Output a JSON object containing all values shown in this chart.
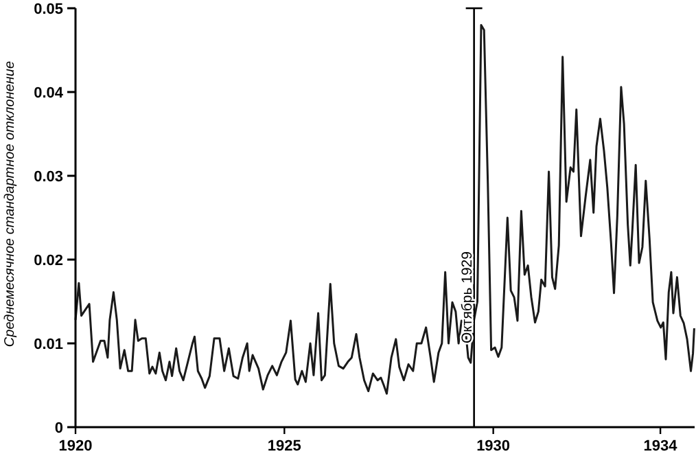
{
  "chart_data": {
    "type": "line",
    "ylabel": "Среднемесячное стандартное отклонение",
    "xlim": [
      1920,
      1934.82
    ],
    "xticks": [
      1920,
      1925,
      1930,
      1934
    ],
    "ylim": [
      0,
      0.05
    ],
    "yticks": [
      0,
      0.01,
      0.02,
      0.03,
      0.04,
      0.05
    ],
    "grid": false,
    "marker": "none",
    "line_style": "solid",
    "ref_lines": [
      {
        "axis": "x",
        "value": 1929.54,
        "label": "Октябрь 1929"
      }
    ],
    "series": [
      {
        "color": "#1a1a1a",
        "x": [
          1920.0,
          1920.08,
          1920.14,
          1920.22,
          1920.33,
          1920.42,
          1920.52,
          1920.6,
          1920.69,
          1920.77,
          1920.82,
          1920.91,
          1920.99,
          1921.07,
          1921.17,
          1921.26,
          1921.35,
          1921.43,
          1921.5,
          1921.59,
          1921.68,
          1921.77,
          1921.84,
          1921.92,
          1922.01,
          1922.08,
          1922.16,
          1922.25,
          1922.31,
          1922.41,
          1922.49,
          1922.58,
          1922.69,
          1922.8,
          1922.85,
          1922.93,
          1923.02,
          1923.1,
          1923.21,
          1923.32,
          1923.45,
          1923.56,
          1923.67,
          1923.78,
          1923.89,
          1924.0,
          1924.11,
          1924.16,
          1924.24,
          1924.38,
          1924.49,
          1924.6,
          1924.71,
          1924.82,
          1924.93,
          1925.04,
          1925.15,
          1925.26,
          1925.32,
          1925.42,
          1925.51,
          1925.62,
          1925.7,
          1925.81,
          1925.89,
          1925.97,
          1926.1,
          1926.19,
          1926.3,
          1926.41,
          1926.52,
          1926.61,
          1926.72,
          1926.8,
          1926.91,
          1927.01,
          1927.12,
          1927.23,
          1927.31,
          1927.38,
          1927.45,
          1927.56,
          1927.67,
          1927.75,
          1927.86,
          1927.97,
          1928.08,
          1928.17,
          1928.28,
          1928.39,
          1928.5,
          1928.58,
          1928.69,
          1928.77,
          1928.85,
          1928.93,
          1929.02,
          1929.1,
          1929.17,
          1929.24,
          1929.32,
          1929.4,
          1929.46,
          1929.54,
          1929.62,
          1929.71,
          1929.78,
          1929.87,
          1929.95,
          1930.04,
          1930.12,
          1930.2,
          1930.34,
          1930.42,
          1930.5,
          1930.58,
          1930.67,
          1930.75,
          1930.83,
          1930.91,
          1931.0,
          1931.08,
          1931.15,
          1931.24,
          1931.33,
          1931.41,
          1931.48,
          1931.57,
          1931.66,
          1931.75,
          1931.85,
          1931.92,
          1931.99,
          1932.1,
          1932.21,
          1932.32,
          1932.4,
          1932.47,
          1932.56,
          1932.65,
          1932.73,
          1932.82,
          1932.89,
          1932.97,
          1933.06,
          1933.13,
          1933.22,
          1933.28,
          1933.33,
          1933.41,
          1933.49,
          1933.57,
          1933.65,
          1933.74,
          1933.82,
          1933.93,
          1934.01,
          1934.07,
          1934.13,
          1934.2,
          1934.26,
          1934.31,
          1934.4,
          1934.48,
          1934.56,
          1934.64,
          1934.73,
          1934.78,
          1934.81
        ],
        "values": [
          0.0128,
          0.0172,
          0.0133,
          0.0139,
          0.0147,
          0.0078,
          0.0092,
          0.0103,
          0.0103,
          0.0083,
          0.0128,
          0.0161,
          0.0128,
          0.007,
          0.0092,
          0.0067,
          0.0067,
          0.0128,
          0.0103,
          0.0106,
          0.0106,
          0.0064,
          0.0072,
          0.0064,
          0.0089,
          0.0067,
          0.0056,
          0.0078,
          0.0061,
          0.0094,
          0.0067,
          0.0056,
          0.0078,
          0.01,
          0.0108,
          0.0067,
          0.0058,
          0.0047,
          0.0061,
          0.0106,
          0.0106,
          0.0067,
          0.0094,
          0.0061,
          0.0058,
          0.0083,
          0.01,
          0.0067,
          0.0086,
          0.007,
          0.0045,
          0.0062,
          0.0073,
          0.0062,
          0.0078,
          0.0089,
          0.0127,
          0.0057,
          0.0051,
          0.0067,
          0.0054,
          0.01,
          0.0062,
          0.0136,
          0.0056,
          0.0062,
          0.0171,
          0.01,
          0.0073,
          0.007,
          0.0078,
          0.0083,
          0.0111,
          0.0083,
          0.0056,
          0.0043,
          0.0064,
          0.0056,
          0.0059,
          0.005,
          0.004,
          0.0083,
          0.0105,
          0.0072,
          0.0056,
          0.0075,
          0.0067,
          0.01,
          0.01,
          0.0119,
          0.0083,
          0.0054,
          0.0089,
          0.01,
          0.0185,
          0.01,
          0.0149,
          0.0138,
          0.01,
          0.0127,
          0.0124,
          0.0083,
          0.0077,
          0.0128,
          0.015,
          0.048,
          0.0474,
          0.0291,
          0.0092,
          0.0095,
          0.0084,
          0.0095,
          0.025,
          0.0163,
          0.0155,
          0.0127,
          0.0258,
          0.0182,
          0.0193,
          0.0155,
          0.0125,
          0.0138,
          0.0176,
          0.0168,
          0.0305,
          0.0179,
          0.0165,
          0.0217,
          0.0442,
          0.0269,
          0.031,
          0.0305,
          0.0379,
          0.0228,
          0.0275,
          0.0319,
          0.0256,
          0.0335,
          0.0368,
          0.033,
          0.0286,
          0.022,
          0.016,
          0.0253,
          0.0406,
          0.0362,
          0.0242,
          0.0193,
          0.0236,
          0.0313,
          0.0196,
          0.0215,
          0.0294,
          0.0225,
          0.0149,
          0.0127,
          0.0119,
          0.0125,
          0.0081,
          0.0161,
          0.0185,
          0.0136,
          0.0179,
          0.0133,
          0.0124,
          0.0105,
          0.0067,
          0.0088,
          0.0118
        ]
      }
    ]
  }
}
